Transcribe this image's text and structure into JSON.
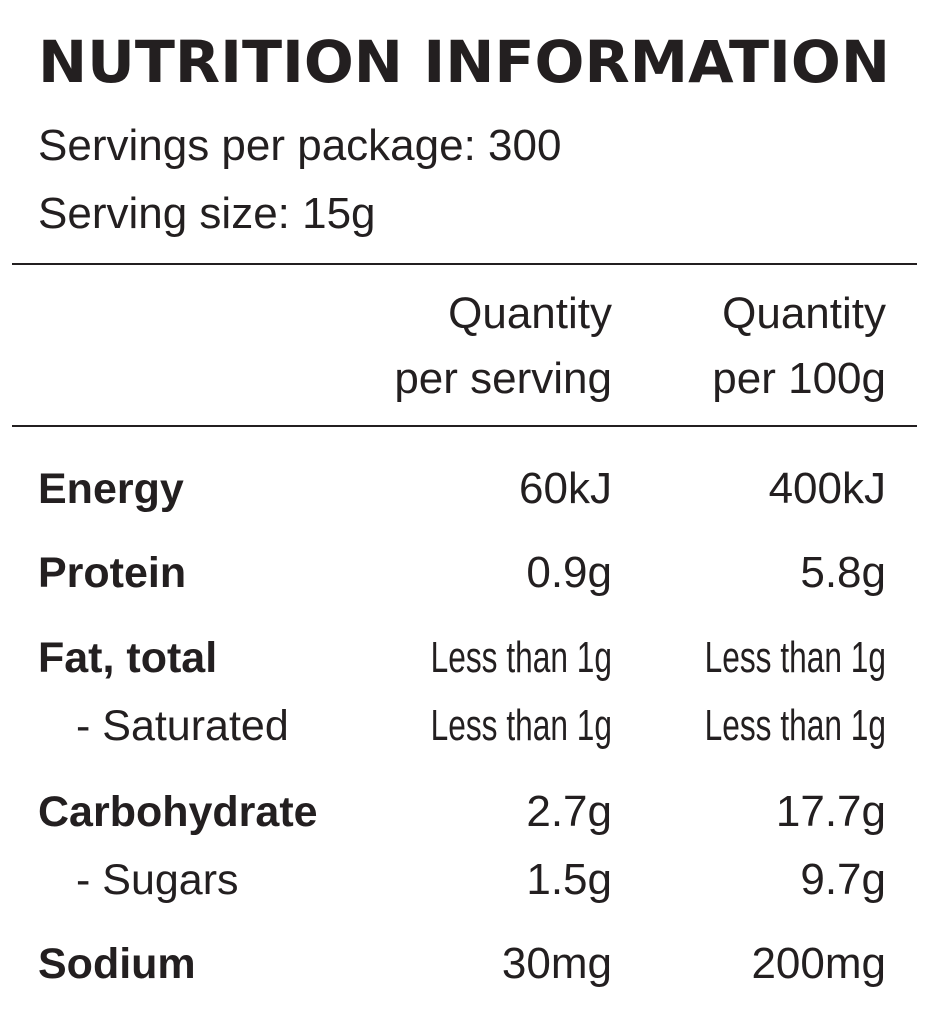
{
  "header": {
    "title": "NUTRITION INFORMATION",
    "lines": [
      "Servings per package: 300",
      "Serving size: 15g"
    ]
  },
  "table": {
    "columns": [
      [
        "Quantity",
        "per serving"
      ],
      [
        "Quantity",
        "per 100g"
      ]
    ],
    "rows": [
      [
        "Energy",
        "60kJ",
        "400kJ"
      ],
      [
        "Protein",
        "0.9g",
        "5.8g"
      ],
      [
        "Fat, total",
        "Less than 1g",
        "Less than 1g"
      ],
      [
        "- Saturated",
        "Less than 1g",
        "Less than 1g"
      ],
      [
        "Carbohydrate",
        "2.7g",
        "17.7g"
      ],
      [
        "- Sugars",
        "1.5g",
        "9.7g"
      ],
      [
        "Sodium",
        "30mg",
        "200mg"
      ]
    ]
  }
}
